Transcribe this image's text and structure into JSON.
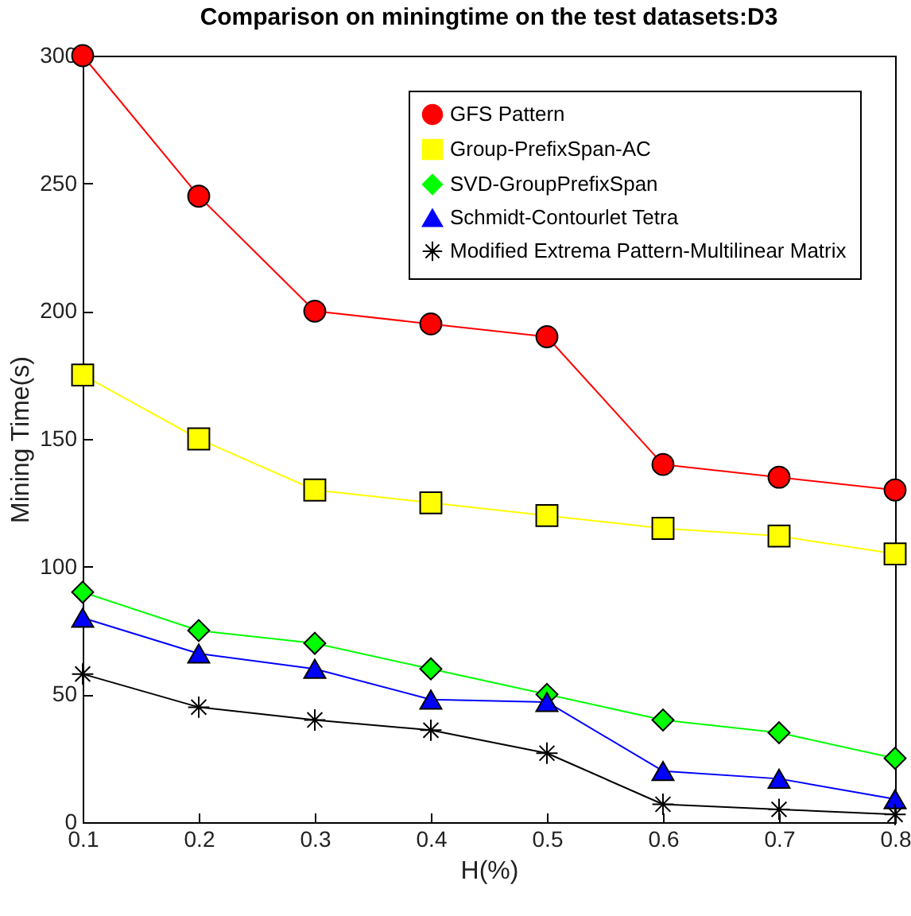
{
  "chart_data": {
    "type": "line",
    "title": "Comparison on miningtime on the test datasets:D3",
    "xlabel": "H(%)",
    "ylabel": "Mining Time(s)",
    "x": [
      0.1,
      0.2,
      0.3,
      0.4,
      0.5,
      0.6,
      0.7,
      0.8
    ],
    "series": [
      {
        "name": "GFS Pattern",
        "color": "#ff0000",
        "marker": "circle",
        "values": [
          300,
          245,
          200,
          195,
          190,
          140,
          135,
          130
        ]
      },
      {
        "name": "Group-PrefixSpan-AC",
        "color": "#ffff00",
        "marker": "square",
        "values": [
          175,
          150,
          130,
          125,
          120,
          115,
          112,
          105
        ]
      },
      {
        "name": "SVD-GroupPrefixSpan",
        "color": "#00ff00",
        "marker": "diamond",
        "values": [
          90,
          75,
          70,
          60,
          50,
          40,
          35,
          25
        ]
      },
      {
        "name": "Schmidt-Contourlet Tetra",
        "color": "#0000ff",
        "marker": "triangle",
        "values": [
          80,
          66,
          60,
          48,
          47,
          20,
          17,
          9
        ]
      },
      {
        "name": "Modified Extrema Pattern-Multilinear Matrix",
        "color": "#000000",
        "marker": "cross",
        "values": [
          58,
          45,
          40,
          36,
          27,
          7,
          5,
          3
        ]
      }
    ],
    "xlim": [
      0.1,
      0.8
    ],
    "xticks": [
      0.1,
      0.2,
      0.3,
      0.4,
      0.5,
      0.6,
      0.7,
      0.8
    ],
    "ylim": [
      0,
      300
    ],
    "yticks": [
      0,
      50,
      100,
      150,
      200,
      250,
      300
    ],
    "grid": false,
    "legend": "top right",
    "line_style": "solid"
  }
}
